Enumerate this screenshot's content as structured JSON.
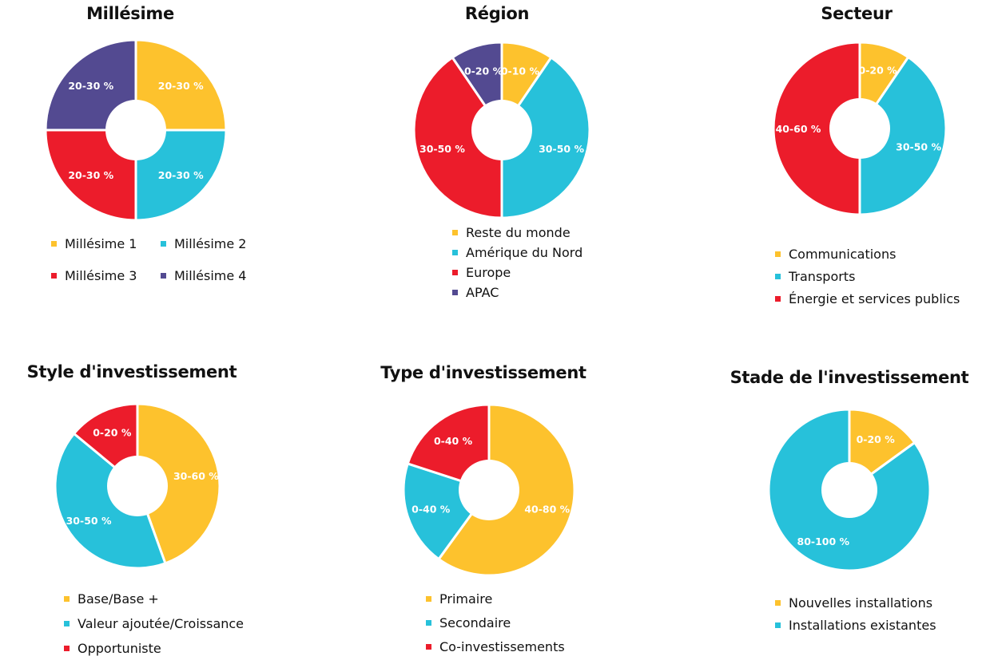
{
  "colors": {
    "yellow": "#FDC22D",
    "cyan": "#27C1DA",
    "red": "#EC1C2B",
    "purple": "#534A91"
  },
  "chart_data": [
    {
      "type": "pie",
      "title": "Millésime",
      "slices": [
        {
          "label": "20-30 %",
          "value": 25,
          "color": "#FDC22D"
        },
        {
          "label": "20-30 %",
          "value": 25,
          "color": "#27C1DA"
        },
        {
          "label": "20-30 %",
          "value": 25,
          "color": "#EC1C2B"
        },
        {
          "label": "20-30 %",
          "value": 25,
          "color": "#534A91"
        }
      ],
      "legend": [
        {
          "label": "Millésime 1",
          "color": "#FDC22D"
        },
        {
          "label": "Millésime 2",
          "color": "#27C1DA"
        },
        {
          "label": "Millésime 3",
          "color": "#EC1C2B"
        },
        {
          "label": "Millésime 4",
          "color": "#534A91"
        }
      ]
    },
    {
      "type": "pie",
      "title": "Région",
      "slices": [
        {
          "label": "0-10 %",
          "value": 9.5,
          "color": "#FDC22D"
        },
        {
          "label": "30-50 %",
          "value": 40.5,
          "color": "#27C1DA"
        },
        {
          "label": "30-50 %",
          "value": 40.5,
          "color": "#EC1C2B"
        },
        {
          "label": "0-20 %",
          "value": 9.5,
          "color": "#534A91"
        }
      ],
      "legend": [
        {
          "label": "Reste du monde",
          "color": "#FDC22D"
        },
        {
          "label": "Amérique du Nord",
          "color": "#27C1DA"
        },
        {
          "label": "Europe",
          "color": "#EC1C2B"
        },
        {
          "label": "APAC",
          "color": "#534A91"
        }
      ]
    },
    {
      "type": "pie",
      "title": "Secteur",
      "slices": [
        {
          "label": "0-20 %",
          "value": 9.5,
          "color": "#FDC22D"
        },
        {
          "label": "30-50 %",
          "value": 40.5,
          "color": "#27C1DA"
        },
        {
          "label": "40-60 %",
          "value": 50,
          "color": "#EC1C2B"
        }
      ],
      "legend": [
        {
          "label": "Communications",
          "color": "#FDC22D"
        },
        {
          "label": "Transports",
          "color": "#27C1DA"
        },
        {
          "label": "Énergie et services publics",
          "color": "#EC1C2B"
        }
      ]
    },
    {
      "type": "pie",
      "title": "Style d'investissement",
      "slices": [
        {
          "label": "30-60 %",
          "value": 44.5,
          "color": "#FDC22D"
        },
        {
          "label": "30-50 %",
          "value": 41.5,
          "color": "#27C1DA"
        },
        {
          "label": "0-20 %",
          "value": 14,
          "color": "#EC1C2B"
        }
      ],
      "legend": [
        {
          "label": "Base/Base +",
          "color": "#FDC22D"
        },
        {
          "label": "Valeur ajoutée/Croissance",
          "color": "#27C1DA"
        },
        {
          "label": "Opportuniste",
          "color": "#EC1C2B"
        }
      ]
    },
    {
      "type": "pie",
      "title": "Type d'investissement",
      "slices": [
        {
          "label": "40-80 %",
          "value": 60,
          "color": "#FDC22D"
        },
        {
          "label": "0-40 %",
          "value": 20,
          "color": "#27C1DA"
        },
        {
          "label": "0-40 %",
          "value": 20,
          "color": "#EC1C2B"
        }
      ],
      "legend": [
        {
          "label": "Primaire",
          "color": "#FDC22D"
        },
        {
          "label": "Secondaire",
          "color": "#27C1DA"
        },
        {
          "label": "Co-investissements",
          "color": "#EC1C2B"
        }
      ]
    },
    {
      "type": "pie",
      "title": "Stade de l'investissement",
      "slices": [
        {
          "label": "0-20 %",
          "value": 15,
          "color": "#FDC22D"
        },
        {
          "label": "80-100 %",
          "value": 85,
          "color": "#27C1DA"
        }
      ],
      "legend": [
        {
          "label": "Nouvelles installations",
          "color": "#FDC22D"
        },
        {
          "label": "Installations existantes",
          "color": "#27C1DA"
        }
      ]
    }
  ]
}
